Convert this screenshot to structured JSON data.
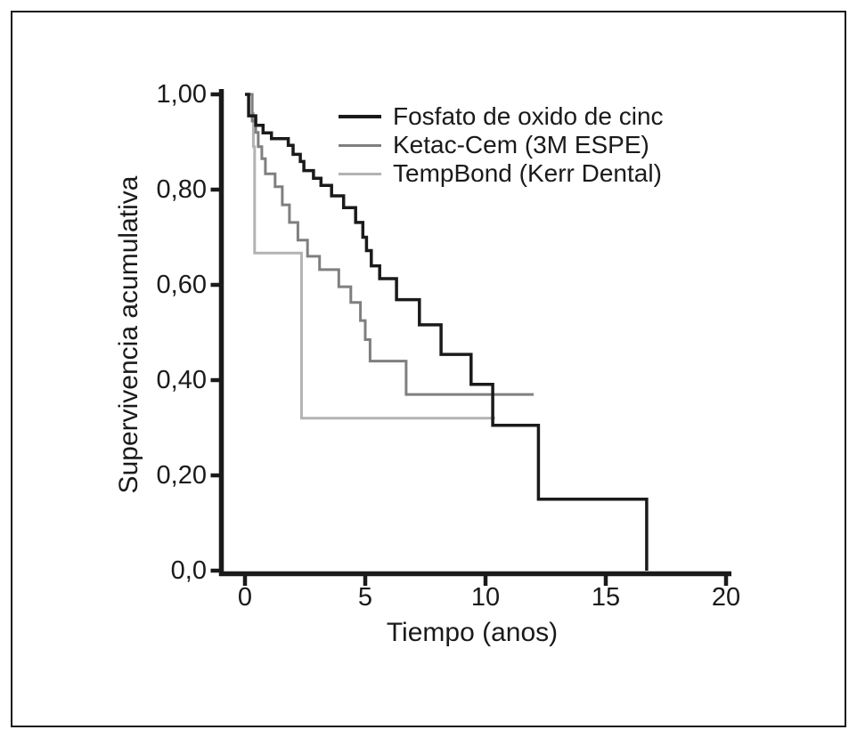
{
  "figure": {
    "background": "#ffffff",
    "border_color": "#1a1a1a"
  },
  "chart_data": {
    "type": "line",
    "subtype": "kaplan-meier-step",
    "title": "",
    "xlabel": "Tiempo (anos)",
    "ylabel": "Supervivencia acumulativa",
    "xlim": [
      0,
      20
    ],
    "ylim": [
      0.0,
      1.0
    ],
    "grid": "off",
    "legend_position": "top-right-inside",
    "x_axis": {
      "tick_values": [
        0,
        5,
        10,
        15,
        20
      ],
      "tick_labels": [
        "0",
        "5",
        "10",
        "15",
        "20"
      ]
    },
    "y_axis": {
      "tick_values": [
        1.0,
        0.8,
        0.6,
        0.4,
        0.2,
        0.0
      ],
      "tick_labels": [
        "1,00",
        "0,80",
        "0,60",
        "0,40",
        "0,20",
        "0,0"
      ]
    },
    "series": [
      {
        "name": "Fosfato de oxido de cinc",
        "color": "#1a1a1a",
        "stroke_width": 3.5,
        "step_points": [
          [
            0.0,
            1.0
          ],
          [
            0.15,
            0.955
          ],
          [
            0.45,
            0.935
          ],
          [
            0.75,
            0.919
          ],
          [
            1.1,
            0.907
          ],
          [
            1.8,
            0.893
          ],
          [
            2.0,
            0.874
          ],
          [
            2.3,
            0.859
          ],
          [
            2.45,
            0.84
          ],
          [
            2.85,
            0.824
          ],
          [
            3.16,
            0.809
          ],
          [
            3.6,
            0.787
          ],
          [
            4.1,
            0.762
          ],
          [
            4.6,
            0.731
          ],
          [
            4.9,
            0.7
          ],
          [
            5.05,
            0.672
          ],
          [
            5.25,
            0.64
          ],
          [
            5.6,
            0.613
          ],
          [
            6.3,
            0.569
          ],
          [
            7.25,
            0.516
          ],
          [
            8.15,
            0.454
          ],
          [
            9.4,
            0.391
          ],
          [
            10.3,
            0.305
          ],
          [
            12.2,
            0.15
          ],
          [
            16.7,
            0.0
          ]
        ],
        "end_t": 16.7
      },
      {
        "name": "Ketac-Cem (3M ESPE)",
        "color": "#7f7f7f",
        "stroke_width": 3,
        "step_points": [
          [
            0.2,
            1.0
          ],
          [
            0.3,
            0.944
          ],
          [
            0.45,
            0.92
          ],
          [
            0.55,
            0.89
          ],
          [
            0.7,
            0.865
          ],
          [
            0.85,
            0.833
          ],
          [
            1.25,
            0.806
          ],
          [
            1.55,
            0.768
          ],
          [
            1.85,
            0.731
          ],
          [
            2.2,
            0.694
          ],
          [
            2.6,
            0.66
          ],
          [
            3.1,
            0.632
          ],
          [
            3.9,
            0.596
          ],
          [
            4.4,
            0.563
          ],
          [
            4.8,
            0.525
          ],
          [
            5.0,
            0.485
          ],
          [
            5.2,
            0.44
          ],
          [
            6.7,
            0.37
          ]
        ],
        "end_t": 12.0
      },
      {
        "name": "TempBond (Kerr Dental)",
        "color": "#b3b3b3",
        "stroke_width": 3,
        "step_points": [
          [
            0.25,
            1.0
          ],
          [
            0.3,
            0.96
          ],
          [
            0.35,
            0.89
          ],
          [
            0.4,
            0.667
          ],
          [
            2.35,
            0.32
          ]
        ],
        "end_t": 10.4
      }
    ]
  }
}
